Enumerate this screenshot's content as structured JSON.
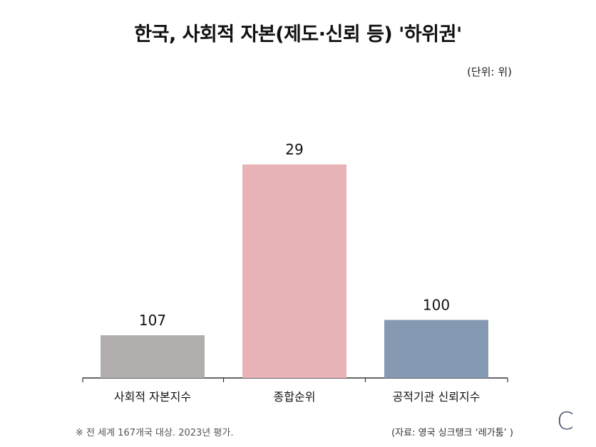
{
  "chart_data": {
    "type": "bar",
    "title": "한국, 사회적 자본(제도·신뢰 등) '하위권'",
    "unit_label": "(단위: 위)",
    "categories": [
      "사회적 자본지수",
      "종합순위",
      "공적기관 신뢰지수"
    ],
    "values": [
      107,
      29,
      100
    ],
    "value_labels": [
      "107",
      "29",
      "100"
    ],
    "colors": [
      "#b3aeae",
      "#e8b3b6",
      "#8599b3"
    ],
    "axis_color": "#333333",
    "display_scale": "rank (lower number = higher position; bar height inverse to rank)",
    "rank_max": 167
  },
  "footer": {
    "note": "※ 전 세계 167개국 대상. 2023년 평가.",
    "source": "(자료: 영국 싱크탱크 ‘레가툼’ )"
  },
  "brand": {
    "mark": "C"
  }
}
